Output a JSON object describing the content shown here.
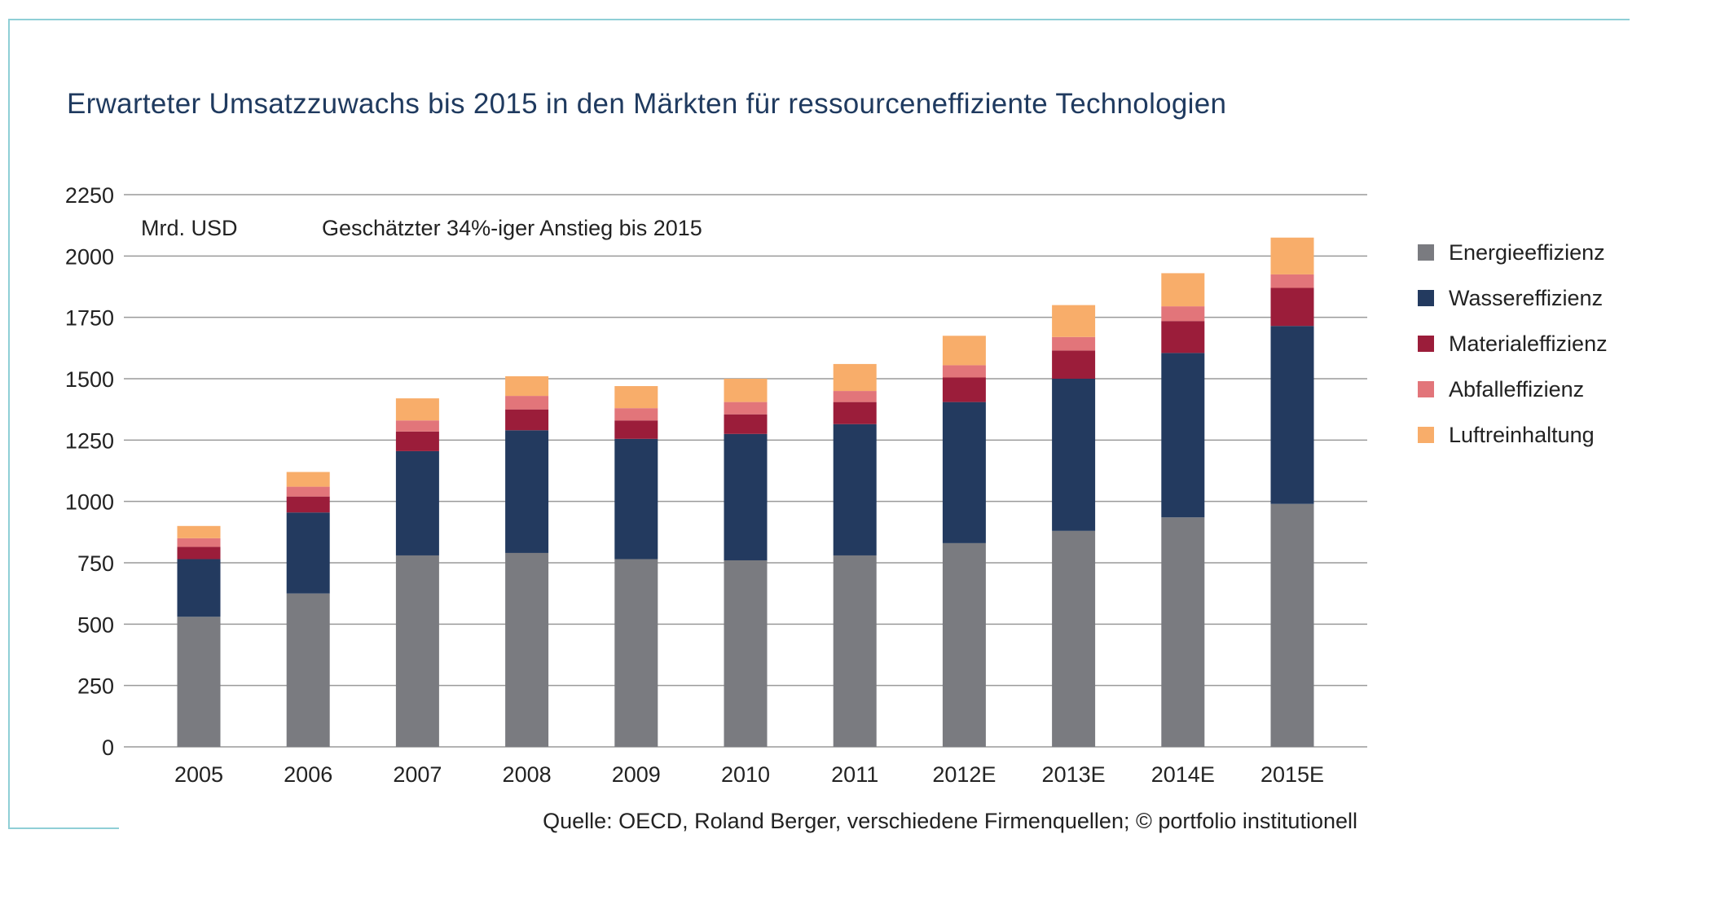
{
  "title": "Erwarteter Umsatzzuwachs bis 2015 in den Märkten für ressourceneffiziente Technologien",
  "unit_note": "Mrd. USD",
  "annotation": "Geschätzter 34%-iger Anstieg bis 2015",
  "source": "Quelle: OECD, Roland Berger, verschiedene Firmenquellen; © portfolio institutionell",
  "chart_data": {
    "type": "bar",
    "stacked": true,
    "categories": [
      "2005",
      "2006",
      "2007",
      "2008",
      "2009",
      "2010",
      "2011",
      "2012E",
      "2013E",
      "2014E",
      "2015E"
    ],
    "series": [
      {
        "name": "Energieeffizienz",
        "color": "#7a7b80",
        "values": [
          530,
          625,
          780,
          790,
          765,
          760,
          780,
          830,
          880,
          935,
          990
        ]
      },
      {
        "name": "Wassereffizienz",
        "color": "#233a5f",
        "values": [
          235,
          330,
          425,
          500,
          490,
          515,
          535,
          575,
          620,
          670,
          725
        ]
      },
      {
        "name": "Materialeffizienz",
        "color": "#9b1d3a",
        "values": [
          50,
          65,
          80,
          85,
          75,
          80,
          90,
          100,
          115,
          130,
          155
        ]
      },
      {
        "name": "Abfalleffizienz",
        "color": "#e2757a",
        "values": [
          35,
          40,
          45,
          55,
          50,
          50,
          45,
          50,
          55,
          60,
          55
        ]
      },
      {
        "name": "Luftreinhaltung",
        "color": "#f8ad6a",
        "values": [
          50,
          60,
          90,
          80,
          90,
          95,
          110,
          120,
          130,
          135,
          150
        ]
      }
    ],
    "yticks": [
      0,
      250,
      500,
      750,
      1000,
      1250,
      1500,
      1750,
      2000,
      2250
    ],
    "ylim": [
      0,
      2250
    ],
    "grid": true,
    "legend": "right"
  }
}
